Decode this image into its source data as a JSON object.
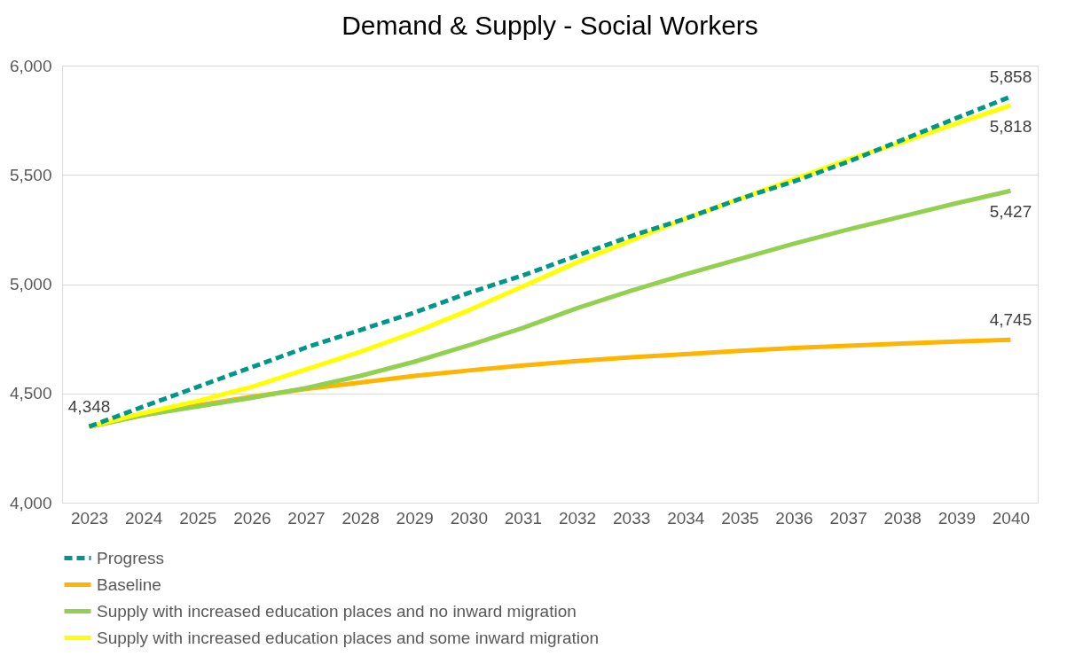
{
  "chart_data": {
    "type": "line",
    "title": "Demand & Supply - Social Workers",
    "categories": [
      "2023",
      "2024",
      "2025",
      "2026",
      "2027",
      "2028",
      "2029",
      "2030",
      "2031",
      "2032",
      "2033",
      "2034",
      "2035",
      "2036",
      "2037",
      "2038",
      "2039",
      "2040"
    ],
    "series": [
      {
        "name": "Progress",
        "color": "#00968a",
        "line_style": "dashed",
        "values": [
          4348,
          4440,
          4530,
          4620,
          4710,
          4790,
          4870,
          4960,
          5040,
          5130,
          5220,
          5300,
          5390,
          5470,
          5560,
          5660,
          5760,
          5858
        ],
        "value_labels": [
          "4,348",
          null,
          null,
          null,
          null,
          null,
          null,
          null,
          null,
          null,
          null,
          null,
          null,
          null,
          null,
          null,
          null,
          "5,858"
        ]
      },
      {
        "name": "Baseline",
        "color": "#ffb400",
        "line_style": "solid",
        "values": [
          4348,
          4400,
          4445,
          4485,
          4520,
          4550,
          4580,
          4605,
          4628,
          4648,
          4665,
          4680,
          4695,
          4708,
          4718,
          4728,
          4737,
          4745
        ],
        "value_labels": [
          null,
          null,
          null,
          null,
          null,
          null,
          null,
          null,
          null,
          null,
          null,
          null,
          null,
          null,
          null,
          null,
          null,
          "4,745"
        ]
      },
      {
        "name": "Supply with increased education places and no inward migration",
        "color": "#92d050",
        "line_style": "solid",
        "values": [
          4348,
          4400,
          4440,
          4480,
          4525,
          4580,
          4645,
          4720,
          4800,
          4890,
          4970,
          5045,
          5115,
          5185,
          5250,
          5310,
          5370,
          5427
        ],
        "value_labels": [
          null,
          null,
          null,
          null,
          null,
          null,
          null,
          null,
          null,
          null,
          null,
          null,
          null,
          null,
          null,
          null,
          null,
          "5,427"
        ]
      },
      {
        "name": "Supply with increased education places and some inward migration",
        "color": "#ffff00",
        "line_style": "solid",
        "values": [
          4348,
          4410,
          4465,
          4530,
          4610,
          4690,
          4780,
          4880,
          4990,
          5100,
          5200,
          5300,
          5390,
          5480,
          5570,
          5650,
          5735,
          5818
        ],
        "value_labels": [
          null,
          null,
          null,
          null,
          null,
          null,
          null,
          null,
          null,
          null,
          null,
          null,
          null,
          null,
          null,
          null,
          null,
          "5,818"
        ]
      }
    ],
    "ylim": [
      4000,
      6000
    ],
    "yticks": [
      {
        "value": 4000,
        "label": "4,000"
      },
      {
        "value": 4500,
        "label": "4,500"
      },
      {
        "value": 5000,
        "label": "5,000"
      },
      {
        "value": 5500,
        "label": "5,500"
      },
      {
        "value": 6000,
        "label": "6,000"
      }
    ],
    "grid": "y",
    "legend": "bottom",
    "marker": "none"
  }
}
